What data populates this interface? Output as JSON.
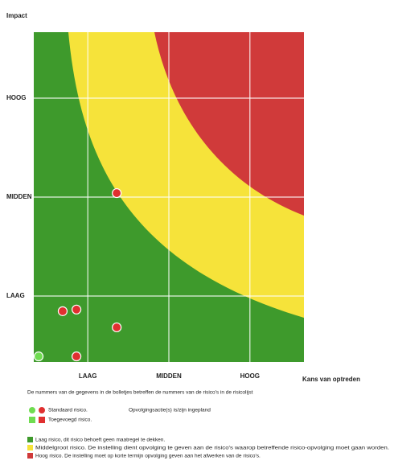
{
  "chart_data": {
    "type": "scatter",
    "y_label": "Impact",
    "x_label": "Kans van optreden",
    "xlim": [
      0,
      10
    ],
    "ylim": [
      0,
      10
    ],
    "xticks": [
      {
        "value": 2,
        "label": "LAAG"
      },
      {
        "value": 5,
        "label": "MIDDEN"
      },
      {
        "value": 8,
        "label": "HOOG"
      }
    ],
    "yticks": [
      {
        "value": 2,
        "label": "LAAG"
      },
      {
        "value": 5,
        "label": "MIDDEN"
      },
      {
        "value": 8,
        "label": "HOOG"
      }
    ],
    "grid": true,
    "series": [
      {
        "color": "#e03030",
        "x": [
          1.07,
          1.58,
          3.07,
          3.07,
          1.58
        ],
        "values": [
          1.54,
          1.59,
          5.12,
          1.05,
          0.17
        ]
      },
      {
        "color": "#6fdc50",
        "x": [
          0.18
        ],
        "values": [
          0.17
        ]
      }
    ],
    "note": "De nummers van de gegevens in de bolletjes betreffen de nummers van de risico's in de risicolijst",
    "legend": [
      {
        "label": "Standaard risico.",
        "extra": "Opvolgingsactie(s) is/zijn ingepland"
      },
      {
        "label": "Toegevoegd risico."
      },
      {
        "label": "Laag risico, dit risico behoeft geen maatregel te dekken."
      },
      {
        "label": "Middelgroot risico. De instelling dient opvolging te geven aan de risico's waarop betreffende risico-opvolging moet gaan worden."
      },
      {
        "label": "Hoog risico. De instelling moet op korte termijn opvolging geven aan het afwerken van de risico's."
      }
    ]
  }
}
